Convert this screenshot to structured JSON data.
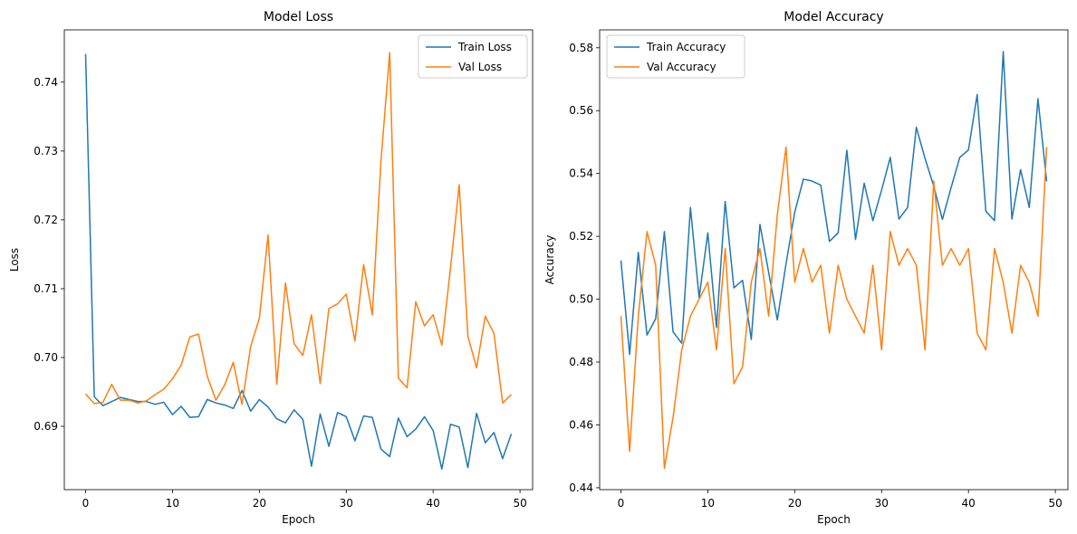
{
  "charts": [
    {
      "id": "loss",
      "chart_data": {
        "type": "line",
        "title": "Model Loss",
        "xlabel": "Epoch",
        "ylabel": "Loss",
        "xlim": [
          -2.45,
          51.45
        ],
        "ylim": [
          0.6808,
          0.7476
        ],
        "x_ticks": [
          0,
          10,
          20,
          30,
          40,
          50
        ],
        "y_ticks": [
          0.69,
          0.7,
          0.71,
          0.72,
          0.73,
          0.74
        ],
        "y_tick_labels": [
          "0.69",
          "0.70",
          "0.71",
          "0.72",
          "0.73",
          "0.74"
        ],
        "legend_position": "top-right",
        "grid": false,
        "x": [
          0,
          1,
          2,
          3,
          4,
          5,
          6,
          7,
          8,
          9,
          10,
          11,
          12,
          13,
          14,
          15,
          16,
          17,
          18,
          19,
          20,
          21,
          22,
          23,
          24,
          25,
          26,
          27,
          28,
          29,
          30,
          31,
          32,
          33,
          34,
          35,
          36,
          37,
          38,
          39,
          40,
          41,
          42,
          43,
          44,
          45,
          46,
          47,
          48,
          49
        ],
        "series": [
          {
            "name": "Train Loss",
            "color": "#1f77b4",
            "values": [
              0.7441,
              0.6943,
              0.693,
              0.6936,
              0.6942,
              0.6939,
              0.6936,
              0.6936,
              0.6932,
              0.6935,
              0.6917,
              0.6929,
              0.6913,
              0.6914,
              0.6939,
              0.6934,
              0.6931,
              0.6926,
              0.6952,
              0.6922,
              0.6939,
              0.6928,
              0.6911,
              0.6905,
              0.6924,
              0.691,
              0.6842,
              0.6918,
              0.6871,
              0.692,
              0.6914,
              0.6879,
              0.6915,
              0.6913,
              0.6867,
              0.6856,
              0.6912,
              0.6885,
              0.6896,
              0.6914,
              0.6894,
              0.6838,
              0.6903,
              0.6899,
              0.684,
              0.6919,
              0.6876,
              0.6891,
              0.6853,
              0.6889
            ]
          },
          {
            "name": "Val Loss",
            "color": "#ff7f0e",
            "values": [
              0.6947,
              0.6933,
              0.6935,
              0.6961,
              0.6938,
              0.6938,
              0.6934,
              0.6937,
              0.6946,
              0.6954,
              0.6969,
              0.6989,
              0.703,
              0.7034,
              0.6973,
              0.6938,
              0.696,
              0.6993,
              0.6932,
              0.7016,
              0.7057,
              0.7178,
              0.6961,
              0.7108,
              0.702,
              0.7003,
              0.7062,
              0.6962,
              0.7071,
              0.7078,
              0.7092,
              0.7024,
              0.7135,
              0.7062,
              0.7286,
              0.7443,
              0.697,
              0.6956,
              0.7081,
              0.7046,
              0.7062,
              0.7018,
              0.713,
              0.7251,
              0.7031,
              0.6985,
              0.706,
              0.7035,
              0.6934,
              0.6946
            ]
          }
        ]
      }
    },
    {
      "id": "acc",
      "chart_data": {
        "type": "line",
        "title": "Model Accuracy",
        "xlabel": "Epoch",
        "ylabel": "Accuracy",
        "xlim": [
          -2.45,
          51.45
        ],
        "ylim": [
          0.4394,
          0.5857
        ],
        "x_ticks": [
          0,
          10,
          20,
          30,
          40,
          50
        ],
        "y_ticks": [
          0.44,
          0.46,
          0.48,
          0.5,
          0.52,
          0.54,
          0.56,
          0.58
        ],
        "y_tick_labels": [
          "0.44",
          "0.46",
          "0.48",
          "0.50",
          "0.52",
          "0.54",
          "0.56",
          "0.58"
        ],
        "legend_position": "top-left",
        "grid": false,
        "x": [
          0,
          1,
          2,
          3,
          4,
          5,
          6,
          7,
          8,
          9,
          10,
          11,
          12,
          13,
          14,
          15,
          16,
          17,
          18,
          19,
          20,
          21,
          22,
          23,
          24,
          25,
          26,
          27,
          28,
          29,
          30,
          31,
          32,
          33,
          34,
          35,
          36,
          37,
          38,
          39,
          40,
          41,
          42,
          43,
          44,
          45,
          46,
          47,
          48,
          49
        ],
        "series": [
          {
            "name": "Train Accuracy",
            "color": "#1f77b4",
            "values": [
              0.5123,
              0.4824,
              0.5149,
              0.4886,
              0.4938,
              0.5215,
              0.4896,
              0.486,
              0.5292,
              0.5005,
              0.5211,
              0.491,
              0.5311,
              0.5036,
              0.506,
              0.4872,
              0.5238,
              0.5086,
              0.4934,
              0.5112,
              0.5276,
              0.5382,
              0.5376,
              0.5363,
              0.5184,
              0.5211,
              0.5474,
              0.519,
              0.5369,
              0.525,
              0.5347,
              0.5451,
              0.5255,
              0.5292,
              0.5547,
              0.5448,
              0.536,
              0.5254,
              0.5355,
              0.5451,
              0.5475,
              0.5651,
              0.528,
              0.525,
              0.5788,
              0.5255,
              0.5412,
              0.5292,
              0.5638,
              0.5375
            ]
          },
          {
            "name": "Val Accuracy",
            "color": "#ff7f0e",
            "values": [
              0.4946,
              0.4516,
              0.4946,
              0.5215,
              0.5108,
              0.4462,
              0.4624,
              0.4839,
              0.4946,
              0.5,
              0.5054,
              0.4839,
              0.5161,
              0.4731,
              0.4785,
              0.5054,
              0.5161,
              0.4946,
              0.5269,
              0.5484,
              0.5054,
              0.5161,
              0.5054,
              0.5108,
              0.4892,
              0.5108,
              0.5,
              0.4946,
              0.4892,
              0.5108,
              0.4839,
              0.5215,
              0.5108,
              0.5161,
              0.5108,
              0.4839,
              0.5376,
              0.5108,
              0.5161,
              0.5108,
              0.5161,
              0.4892,
              0.4839,
              0.5161,
              0.5054,
              0.4892,
              0.5108,
              0.5054,
              0.4946,
              0.5484
            ]
          }
        ]
      }
    }
  ]
}
